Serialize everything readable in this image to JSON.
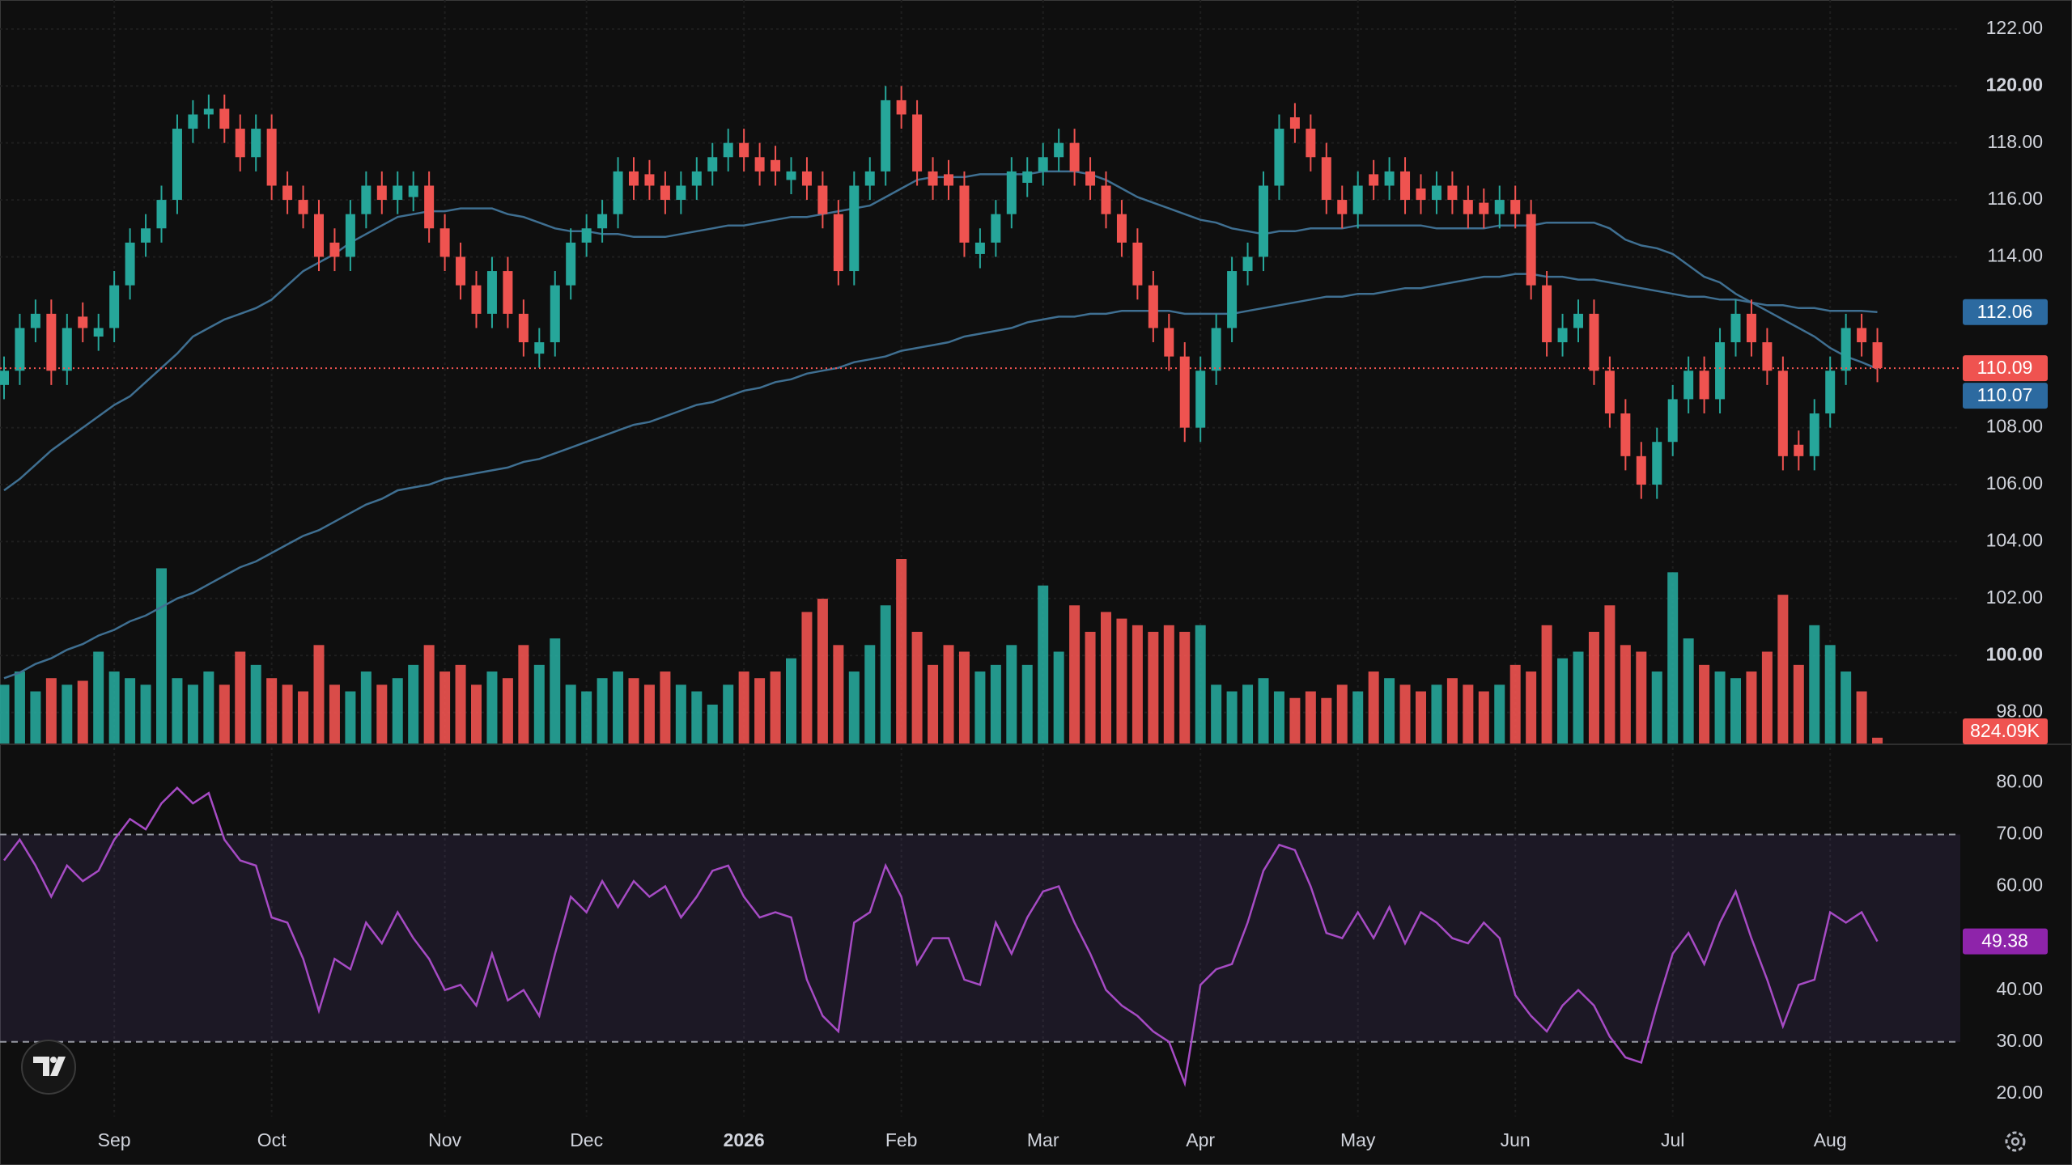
{
  "chart_data": {
    "type": "candlestick",
    "categories": [
      null,
      null,
      null,
      null,
      null,
      null,
      null,
      "Sep",
      null,
      null,
      null,
      null,
      null,
      null,
      null,
      null,
      null,
      "Oct",
      null,
      null,
      null,
      null,
      null,
      null,
      null,
      null,
      null,
      null,
      "Nov",
      null,
      null,
      null,
      null,
      null,
      null,
      null,
      null,
      "Dec",
      null,
      null,
      null,
      null,
      null,
      null,
      null,
      null,
      null,
      "2026",
      null,
      null,
      null,
      null,
      null,
      null,
      null,
      null,
      null,
      "Feb",
      null,
      null,
      null,
      null,
      null,
      null,
      null,
      null,
      "Mar",
      null,
      null,
      null,
      null,
      null,
      null,
      null,
      null,
      null,
      "Apr",
      null,
      null,
      null,
      null,
      null,
      null,
      null,
      null,
      null,
      "May",
      null,
      null,
      null,
      null,
      null,
      null,
      null,
      null,
      null,
      "Jun",
      null,
      null,
      null,
      null,
      null,
      null,
      null,
      null,
      null,
      "Jul",
      null,
      null,
      null,
      null,
      null,
      null,
      null,
      null,
      null,
      "Aug",
      null,
      null,
      null
    ],
    "open": [
      109.5,
      110,
      111.5,
      112,
      110,
      111.9,
      111.2,
      111.5,
      113,
      114.5,
      115,
      116,
      118.5,
      119,
      119.2,
      118.5,
      117.5,
      118.5,
      116.5,
      116,
      115.5,
      114.5,
      114,
      115.5,
      116.5,
      116,
      116.1,
      116.5,
      115,
      114,
      113,
      112,
      113.5,
      112,
      110.6,
      111,
      113,
      114.5,
      115,
      115.5,
      117,
      116.9,
      116.5,
      116,
      116.5,
      117,
      117.5,
      118,
      117.5,
      117.4,
      116.7,
      117,
      116.5,
      115.5,
      113.5,
      116.5,
      117,
      119.5,
      119,
      117,
      116.9,
      116.5,
      114.1,
      114.5,
      115.5,
      116.6,
      117,
      117.5,
      118,
      117,
      116.5,
      115.5,
      114.5,
      113,
      111.5,
      110.5,
      108,
      110,
      111.5,
      113.5,
      114,
      116.5,
      118.9,
      118.5,
      117.5,
      116,
      115.5,
      116.9,
      116.5,
      117,
      116.4,
      116,
      116.5,
      116,
      115.9,
      115.5,
      116,
      115.5,
      113,
      111,
      111.5,
      112,
      110,
      108.5,
      107,
      106,
      107.5,
      109,
      110,
      109,
      111,
      112,
      111,
      110,
      107.4,
      107,
      108.5,
      110,
      111.5,
      111
    ],
    "high": [
      110.5,
      112,
      112.5,
      112.5,
      112,
      112.4,
      112,
      113.5,
      115,
      115.5,
      116.5,
      119,
      119.5,
      119.7,
      119.7,
      119,
      119,
      119,
      117,
      116.5,
      116,
      115,
      116,
      117,
      117,
      117,
      117,
      117,
      115.5,
      114.5,
      113.5,
      114,
      114,
      112.5,
      111.5,
      113.5,
      115,
      115.5,
      116,
      117.5,
      117.5,
      117.4,
      117,
      117,
      117.5,
      118,
      118.5,
      118.5,
      118,
      117.9,
      117.5,
      117.5,
      117,
      116,
      117,
      117.5,
      120,
      120,
      119.5,
      117.5,
      117.4,
      117,
      115,
      116,
      117.5,
      117.5,
      118,
      118.5,
      118.5,
      117.5,
      117,
      116,
      115,
      113.5,
      112,
      111,
      110.5,
      112,
      114,
      114.5,
      117,
      119,
      119.4,
      119,
      118,
      116.5,
      117,
      117.4,
      117.5,
      117.5,
      116.9,
      117,
      117,
      116.5,
      116.4,
      116.5,
      116.5,
      116,
      113.5,
      112,
      112.5,
      112.5,
      110.5,
      109,
      107.5,
      108,
      109.5,
      110.5,
      110.5,
      111.5,
      112.5,
      112.5,
      111.5,
      110.5,
      107.9,
      109,
      110.5,
      112,
      112,
      111.5
    ],
    "low": [
      109,
      109.5,
      111,
      109.5,
      109.5,
      111,
      110.7,
      111,
      112.5,
      114,
      114.5,
      115.5,
      118,
      118.5,
      118,
      117,
      117,
      116,
      115.5,
      115,
      113.5,
      113.5,
      113.5,
      115,
      115.5,
      115.5,
      115.6,
      114.5,
      113.5,
      112.5,
      111.5,
      111.5,
      111.5,
      110.5,
      110.1,
      110.5,
      112.5,
      114,
      114.5,
      115,
      116,
      116,
      115.5,
      115.5,
      116,
      116.5,
      117,
      117,
      116.5,
      116.5,
      116.2,
      116,
      115,
      113,
      113,
      116,
      116.5,
      118.5,
      116.5,
      116,
      116,
      114,
      113.6,
      114,
      115,
      116.1,
      116.5,
      117,
      116.5,
      116,
      115,
      114,
      112.5,
      111,
      110,
      107.5,
      107.5,
      109.5,
      111,
      113,
      113.5,
      116,
      118,
      117,
      115.5,
      115,
      115,
      116,
      116,
      115.5,
      115.5,
      115.5,
      115.5,
      115,
      115,
      115,
      115,
      112.5,
      110.5,
      110.5,
      111,
      109.5,
      108,
      106.5,
      105.5,
      105.5,
      107,
      108.5,
      108.5,
      108.5,
      110.5,
      110.5,
      109.5,
      106.5,
      106.5,
      106.5,
      108,
      109.5,
      110.5,
      109.6
    ],
    "close": [
      110,
      111.5,
      112,
      110,
      111.5,
      111.5,
      111.5,
      113,
      114.5,
      115,
      116,
      118.5,
      119,
      119.2,
      118.5,
      117.5,
      118.5,
      116.5,
      116,
      115.5,
      114,
      114,
      115.5,
      116.5,
      116,
      116.5,
      116.5,
      115,
      114,
      113,
      112,
      113.5,
      112,
      111,
      111,
      113,
      114.5,
      115,
      115.5,
      117,
      116.5,
      116.5,
      116,
      116.5,
      117,
      117.5,
      118,
      117.5,
      117,
      117,
      117,
      116.5,
      115.5,
      113.5,
      116.5,
      117,
      119.5,
      119,
      117,
      116.5,
      116.5,
      114.5,
      114.5,
      115.5,
      117,
      117,
      117.5,
      118,
      117,
      116.5,
      115.5,
      114.5,
      113,
      111.5,
      110.5,
      108,
      110,
      111.5,
      113.5,
      114,
      116.5,
      118.5,
      118.5,
      117.5,
      116,
      115.5,
      116.5,
      116.5,
      117,
      116,
      116,
      116.5,
      116,
      115.5,
      115.5,
      116,
      115.5,
      113,
      111,
      111.5,
      112,
      110,
      108.5,
      107,
      106,
      107.5,
      109,
      110,
      109,
      111,
      112,
      111,
      110,
      107,
      107,
      108.5,
      110,
      111.5,
      111,
      110.09
    ],
    "up_color": "#26a69a",
    "down_color": "#ef5350",
    "ylim": [
      96.88,
      123.02
    ],
    "yticks": [
      {
        "value": 98,
        "label": "98.00"
      },
      {
        "value": 100,
        "label": "100.00"
      },
      {
        "value": 102,
        "label": "102.00"
      },
      {
        "value": 104,
        "label": "104.00"
      },
      {
        "value": 106,
        "label": "106.00"
      },
      {
        "value": 108,
        "label": "108.00"
      },
      {
        "value": 114,
        "label": "114.00"
      },
      {
        "value": 116,
        "label": "116.00"
      },
      {
        "value": 118,
        "label": "118.00"
      },
      {
        "value": 120,
        "label": "120.00"
      },
      {
        "value": 122,
        "label": "122.00"
      }
    ],
    "grid": true,
    "moving_averages": [
      {
        "color": "#3f6f91",
        "values": [
          105.8,
          106.2,
          106.7,
          107.2,
          107.6,
          108,
          108.4,
          108.8,
          109.1,
          109.6,
          110.1,
          110.6,
          111.2,
          111.5,
          111.8,
          112,
          112.2,
          112.5,
          113,
          113.5,
          113.8,
          114.1,
          114.5,
          114.8,
          115.1,
          115.4,
          115.5,
          115.6,
          115.6,
          115.7,
          115.7,
          115.7,
          115.5,
          115.4,
          115.2,
          115,
          114.9,
          114.9,
          114.8,
          114.8,
          114.7,
          114.7,
          114.7,
          114.8,
          114.9,
          115,
          115.1,
          115.1,
          115.2,
          115.3,
          115.4,
          115.4,
          115.5,
          115.6,
          115.7,
          115.8,
          116.1,
          116.4,
          116.7,
          116.8,
          116.8,
          116.8,
          116.9,
          116.9,
          116.9,
          116.9,
          117,
          117,
          117,
          116.9,
          116.7,
          116.4,
          116.1,
          115.9,
          115.7,
          115.5,
          115.3,
          115.2,
          115,
          114.9,
          114.8,
          114.9,
          114.9,
          115,
          115,
          115,
          115.1,
          115.1,
          115.1,
          115.1,
          115.1,
          115,
          115,
          115,
          115,
          115.1,
          115.1,
          115.1,
          115.2,
          115.2,
          115.2,
          115.2,
          115,
          114.6,
          114.4,
          114.3,
          114.1,
          113.7,
          113.3,
          113.1,
          112.7,
          112.4,
          112.1,
          111.8,
          111.5,
          111.2,
          110.8,
          110.5,
          110.3,
          110.07
        ]
      },
      {
        "color": "#3f6f91",
        "values": [
          99.2,
          99.4,
          99.7,
          99.9,
          100.2,
          100.4,
          100.7,
          100.9,
          101.2,
          101.4,
          101.7,
          102,
          102.2,
          102.5,
          102.8,
          103.1,
          103.3,
          103.6,
          103.9,
          104.2,
          104.4,
          104.7,
          105,
          105.3,
          105.5,
          105.8,
          105.9,
          106,
          106.2,
          106.3,
          106.4,
          106.5,
          106.6,
          106.8,
          106.9,
          107.1,
          107.3,
          107.5,
          107.7,
          107.9,
          108.1,
          108.2,
          108.4,
          108.6,
          108.8,
          108.9,
          109.1,
          109.3,
          109.4,
          109.6,
          109.7,
          109.9,
          110,
          110.1,
          110.3,
          110.4,
          110.5,
          110.7,
          110.8,
          110.9,
          111,
          111.2,
          111.3,
          111.4,
          111.5,
          111.7,
          111.8,
          111.9,
          111.9,
          112,
          112,
          112.1,
          112.1,
          112.1,
          112.1,
          112,
          112,
          112,
          112,
          112.1,
          112.2,
          112.3,
          112.4,
          112.5,
          112.6,
          112.6,
          112.7,
          112.7,
          112.8,
          112.9,
          112.9,
          113,
          113.1,
          113.2,
          113.3,
          113.3,
          113.4,
          113.4,
          113.3,
          113.3,
          113.2,
          113.2,
          113.1,
          113,
          112.9,
          112.8,
          112.7,
          112.6,
          112.6,
          112.5,
          112.5,
          112.4,
          112.3,
          112.3,
          112.2,
          112.2,
          112.1,
          112.1,
          112.1,
          112.06
        ]
      }
    ],
    "volume": {
      "values": [
        7425,
        9075,
        6600,
        8250,
        7425,
        7920,
        11550,
        9075,
        8250,
        7425,
        21945,
        8250,
        7425,
        9075,
        7425,
        11550,
        9900,
        8250,
        7425,
        6600,
        12375,
        7425,
        6600,
        9075,
        7425,
        8250,
        9900,
        12375,
        9075,
        9900,
        7425,
        9075,
        8250,
        12375,
        9900,
        13200,
        7425,
        6600,
        8250,
        9075,
        8250,
        7425,
        9075,
        7425,
        6600,
        4950,
        7425,
        9075,
        8250,
        9075,
        10725,
        16500,
        18150,
        12375,
        9075,
        12375,
        17325,
        23100,
        14025,
        9900,
        12375,
        11550,
        9075,
        9900,
        12375,
        9900,
        19800,
        11550,
        17325,
        14025,
        16500,
        15675,
        14850,
        14025,
        14850,
        14025,
        14850,
        7425,
        6600,
        7425,
        8250,
        6600,
        5775,
        6600,
        5775,
        7425,
        6600,
        9075,
        8250,
        7425,
        6600,
        7425,
        8250,
        7425,
        6600,
        7425,
        9900,
        9075,
        14850,
        10725,
        11550,
        14025,
        17325,
        12375,
        11550,
        9075,
        21450,
        13200,
        9900,
        9075,
        8250,
        9075,
        11550,
        18645,
        9900,
        14850,
        12375,
        9075,
        6600,
        824.09
      ],
      "last_label": "824.09K"
    },
    "rsi": {
      "color": "#a64bc4",
      "values": [
        65,
        69,
        64,
        58,
        64,
        61,
        63,
        69,
        73,
        71,
        76,
        79,
        76,
        78,
        69,
        65,
        64,
        54,
        53,
        46,
        36,
        46,
        44,
        53,
        49,
        55,
        50,
        46,
        40,
        41,
        37,
        47,
        38,
        40,
        35,
        47,
        58,
        55,
        61,
        56,
        61,
        58,
        60,
        54,
        58,
        63,
        64,
        58,
        54,
        55,
        54,
        42,
        35,
        32,
        53,
        55,
        64,
        58,
        45,
        50,
        50,
        42,
        41,
        53,
        47,
        54,
        59,
        60,
        53,
        47,
        40,
        37,
        35,
        32,
        30,
        22,
        41,
        44,
        45,
        53,
        63,
        68,
        67,
        60,
        51,
        50,
        55,
        50,
        56,
        49,
        55,
        53,
        50,
        49,
        53,
        50,
        39,
        35,
        32,
        37,
        40,
        37,
        31,
        27,
        26,
        37,
        47,
        51,
        45,
        53,
        59,
        50,
        42,
        33,
        41,
        42,
        55,
        53,
        55,
        49.38
      ],
      "ylim": [
        15.6,
        87.4
      ],
      "yticks": [
        {
          "value": 20,
          "label": "20.00"
        },
        {
          "value": 30,
          "label": "30.00"
        },
        {
          "value": 40,
          "label": "40.00"
        },
        {
          "value": 50,
          "label": "50.00"
        },
        {
          "value": 60,
          "label": "60.00"
        },
        {
          "value": 70,
          "label": "70.00"
        },
        {
          "value": 80,
          "label": "80.00"
        }
      ],
      "upper_band": 70,
      "lower_band": 30,
      "band_color": "#7e57c2"
    }
  }
}
